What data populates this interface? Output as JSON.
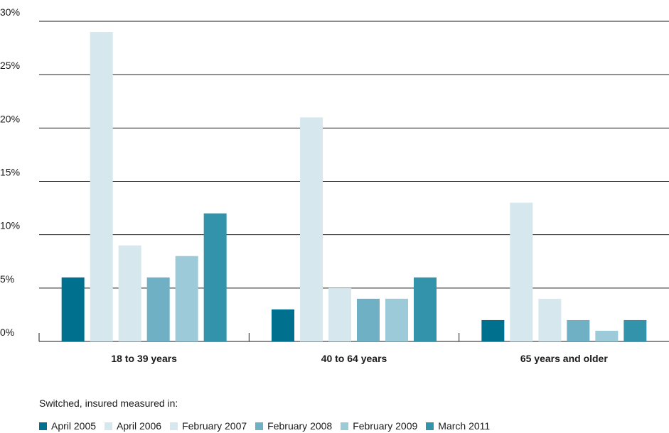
{
  "chart_data": {
    "type": "bar",
    "categories": [
      "18 to 39 years",
      "40 to 64 years",
      "65 years and older"
    ],
    "series": [
      {
        "name": "April 2005",
        "color": "#00708f",
        "values": [
          6,
          3,
          2
        ]
      },
      {
        "name": "April 2006",
        "color": "#d6e8ee",
        "values": [
          29,
          21,
          13
        ]
      },
      {
        "name": "February 2007",
        "color": "#d6e8ee",
        "values": [
          9,
          5,
          4
        ]
      },
      {
        "name": "February 2008",
        "color": "#6fb0c4",
        "values": [
          6,
          4,
          2
        ]
      },
      {
        "name": "February 2009",
        "color": "#9dcad8",
        "values": [
          8,
          4,
          1
        ]
      },
      {
        "name": "March 2011",
        "color": "#3393aa",
        "values": [
          12,
          6,
          2
        ]
      }
    ],
    "yticks": [
      "0%",
      "5%",
      "10%",
      "15%",
      "20%",
      "25%",
      "30%"
    ],
    "ylim": [
      0,
      30
    ],
    "legend_title": "Switched, insured measured in:",
    "legend_position": "bottom",
    "grid": true
  }
}
